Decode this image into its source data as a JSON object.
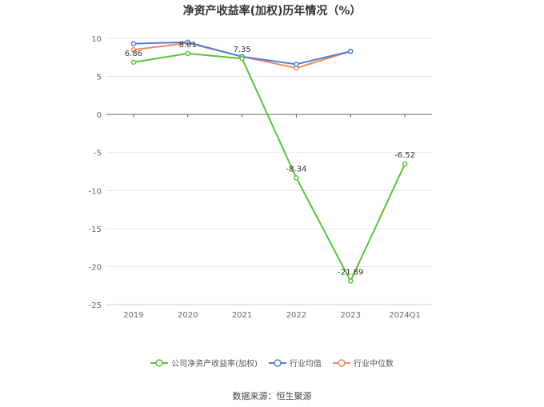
{
  "title": "净资产收益率(加权)历年情况（%）",
  "source": "数据来源：恒生聚源",
  "chart_data": {
    "type": "line",
    "categories": [
      "2019",
      "2020",
      "2021",
      "2022",
      "2023",
      "2024Q1"
    ],
    "ylim": [
      -25,
      10
    ],
    "yticks": [
      10,
      5,
      0,
      -5,
      -10,
      -15,
      -20,
      -25
    ],
    "grid": true,
    "legend_position": "bottom",
    "series": [
      {
        "name": "公司净资产收益率(加权)",
        "color": "#5ac235",
        "values": [
          6.86,
          8.01,
          7.35,
          -8.34,
          -21.89,
          -6.52
        ],
        "labels": [
          "6.86",
          "8.01",
          "7.35",
          "-8.34",
          "-21.89",
          "-6.52"
        ]
      },
      {
        "name": "行业均值",
        "color": "#4e7fd6",
        "values": [
          9.3,
          9.5,
          7.6,
          6.6,
          8.3,
          null
        ]
      },
      {
        "name": "行业中位数",
        "color": "#f08a5d",
        "values": [
          8.5,
          9.4,
          7.6,
          6.1,
          8.3,
          null
        ]
      }
    ]
  }
}
